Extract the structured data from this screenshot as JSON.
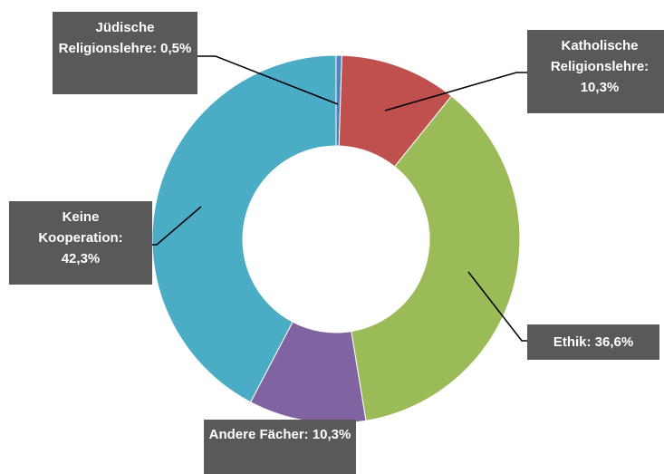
{
  "chart_data": {
    "type": "donut",
    "values": [
      0.5,
      10.3,
      36.6,
      10.3,
      42.3
    ],
    "value_labels": [
      "Jüdische Religionslehre: 0,5%",
      "Katholische Religionslehre: 10,3%",
      "Ethik: 36,6%",
      "Andere Fächer: 10,3%",
      "Keine Kooperation: 42,3%"
    ],
    "colors": [
      "#4f81bd",
      "#c0504d",
      "#9bbb59",
      "#8064a2",
      "#4bacc6"
    ]
  }
}
